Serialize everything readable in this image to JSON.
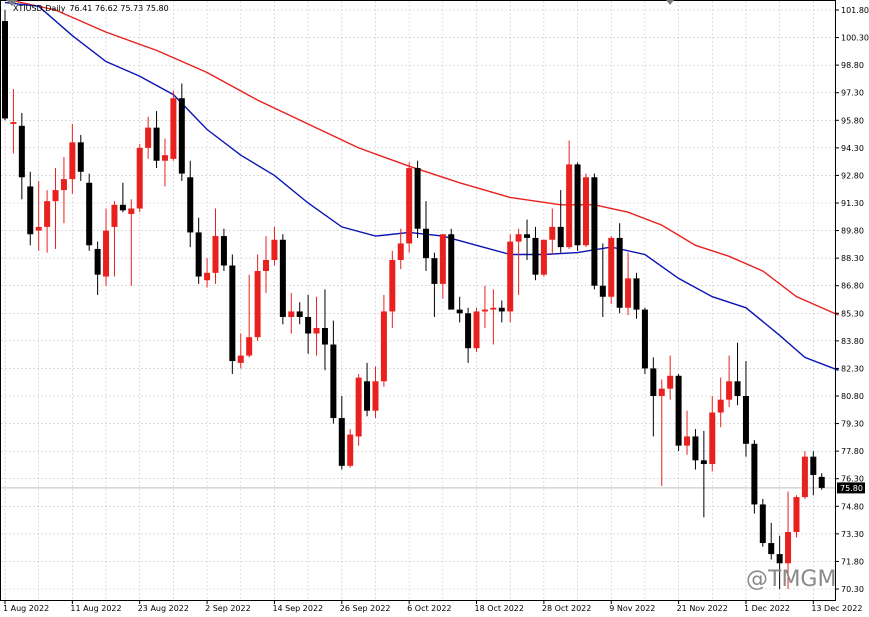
{
  "header": {
    "symbol": "XTIUSD,Daily",
    "ohlc": "76.41 76.62 75.73 75.80"
  },
  "watermark": {
    "text": "@TMGM"
  },
  "colors": {
    "bull": "#e8201e",
    "bear": "#000000",
    "ma_slow": "#e8201e",
    "ma_fast": "#0a14b4",
    "grid": "#c8c8c8",
    "price_label_bg": "#000000",
    "price_label_fg": "#ffffff"
  },
  "chart_data": {
    "type": "candlestick",
    "symbol": "XTIUSD",
    "timeframe": "Daily",
    "ylim": [
      70.0,
      102.0
    ],
    "y_ticks": [
      "101.80",
      "100.30",
      "98.80",
      "97.30",
      "95.80",
      "94.30",
      "92.80",
      "91.30",
      "89.80",
      "88.30",
      "86.80",
      "85.30",
      "83.80",
      "82.30",
      "80.80",
      "79.30",
      "77.80",
      "76.30",
      "74.80",
      "73.30",
      "71.80",
      "70.30"
    ],
    "x_labels": [
      {
        "label": "1 Aug 2022",
        "index": 0
      },
      {
        "label": "11 Aug 2022",
        "index": 8
      },
      {
        "label": "23 Aug 2022",
        "index": 16
      },
      {
        "label": "2 Sep 2022",
        "index": 24
      },
      {
        "label": "14 Sep 2022",
        "index": 32
      },
      {
        "label": "26 Sep 2022",
        "index": 40
      },
      {
        "label": "6 Oct 2022",
        "index": 48
      },
      {
        "label": "18 Oct 2022",
        "index": 56
      },
      {
        "label": "28 Oct 2022",
        "index": 64
      },
      {
        "label": "9 Nov 2022",
        "index": 72
      },
      {
        "label": "21 Nov 2022",
        "index": 80
      },
      {
        "label": "1 Dec 2022",
        "index": 88
      },
      {
        "label": "13 Dec 2022",
        "index": 96
      }
    ],
    "current_price": "75.80",
    "candles": [
      {
        "o": 101.2,
        "h": 101.8,
        "l": 95.8,
        "c": 95.9
      },
      {
        "o": 95.6,
        "h": 97.5,
        "l": 94.0,
        "c": 95.7
      },
      {
        "o": 95.5,
        "h": 96.2,
        "l": 91.5,
        "c": 92.7
      },
      {
        "o": 92.2,
        "h": 93.0,
        "l": 89.0,
        "c": 89.6
      },
      {
        "o": 89.8,
        "h": 92.5,
        "l": 88.7,
        "c": 90.0
      },
      {
        "o": 90.0,
        "h": 92.0,
        "l": 88.6,
        "c": 91.4
      },
      {
        "o": 91.4,
        "h": 93.2,
        "l": 88.8,
        "c": 92.0
      },
      {
        "o": 92.0,
        "h": 93.8,
        "l": 90.2,
        "c": 92.6
      },
      {
        "o": 92.6,
        "h": 95.6,
        "l": 91.8,
        "c": 94.6
      },
      {
        "o": 94.6,
        "h": 95.0,
        "l": 92.5,
        "c": 93.0
      },
      {
        "o": 92.4,
        "h": 92.9,
        "l": 88.7,
        "c": 89.0
      },
      {
        "o": 88.8,
        "h": 89.2,
        "l": 86.3,
        "c": 87.4
      },
      {
        "o": 87.3,
        "h": 91.0,
        "l": 86.8,
        "c": 89.8
      },
      {
        "o": 90.0,
        "h": 91.4,
        "l": 87.3,
        "c": 91.2
      },
      {
        "o": 91.2,
        "h": 92.4,
        "l": 90.8,
        "c": 90.9
      },
      {
        "o": 90.7,
        "h": 91.5,
        "l": 86.8,
        "c": 91.0
      },
      {
        "o": 91.0,
        "h": 94.5,
        "l": 90.8,
        "c": 94.3
      },
      {
        "o": 94.3,
        "h": 96.0,
        "l": 93.7,
        "c": 95.4
      },
      {
        "o": 95.4,
        "h": 96.3,
        "l": 93.2,
        "c": 93.6
      },
      {
        "o": 93.6,
        "h": 94.8,
        "l": 92.2,
        "c": 93.9
      },
      {
        "o": 93.7,
        "h": 97.4,
        "l": 93.6,
        "c": 97.0
      },
      {
        "o": 97.0,
        "h": 97.8,
        "l": 92.5,
        "c": 92.9
      },
      {
        "o": 92.7,
        "h": 93.6,
        "l": 88.9,
        "c": 89.7
      },
      {
        "o": 89.7,
        "h": 90.5,
        "l": 86.9,
        "c": 87.3
      },
      {
        "o": 87.1,
        "h": 88.3,
        "l": 86.7,
        "c": 87.5
      },
      {
        "o": 87.5,
        "h": 91.0,
        "l": 86.9,
        "c": 89.5
      },
      {
        "o": 89.5,
        "h": 89.9,
        "l": 87.6,
        "c": 87.9
      },
      {
        "o": 87.9,
        "h": 88.5,
        "l": 82.0,
        "c": 82.7
      },
      {
        "o": 82.6,
        "h": 84.2,
        "l": 82.3,
        "c": 83.0
      },
      {
        "o": 83.0,
        "h": 87.4,
        "l": 82.9,
        "c": 84.0
      },
      {
        "o": 84.0,
        "h": 88.5,
        "l": 83.8,
        "c": 87.6
      },
      {
        "o": 87.6,
        "h": 89.5,
        "l": 86.4,
        "c": 88.2
      },
      {
        "o": 88.2,
        "h": 90.0,
        "l": 87.9,
        "c": 89.3
      },
      {
        "o": 89.3,
        "h": 89.6,
        "l": 84.7,
        "c": 85.1
      },
      {
        "o": 85.1,
        "h": 86.4,
        "l": 84.2,
        "c": 85.4
      },
      {
        "o": 85.4,
        "h": 85.9,
        "l": 84.7,
        "c": 85.1
      },
      {
        "o": 85.1,
        "h": 86.3,
        "l": 83.1,
        "c": 84.2
      },
      {
        "o": 84.2,
        "h": 86.2,
        "l": 83.0,
        "c": 84.5
      },
      {
        "o": 84.5,
        "h": 86.6,
        "l": 82.2,
        "c": 83.6
      },
      {
        "o": 83.6,
        "h": 84.9,
        "l": 79.3,
        "c": 79.6
      },
      {
        "o": 79.6,
        "h": 80.8,
        "l": 76.8,
        "c": 77.0
      },
      {
        "o": 77.0,
        "h": 79.0,
        "l": 76.9,
        "c": 78.7
      },
      {
        "o": 78.6,
        "h": 82.0,
        "l": 78.1,
        "c": 81.8
      },
      {
        "o": 81.6,
        "h": 82.6,
        "l": 79.7,
        "c": 80.0
      },
      {
        "o": 80.0,
        "h": 82.4,
        "l": 79.6,
        "c": 81.6
      },
      {
        "o": 81.6,
        "h": 86.3,
        "l": 81.3,
        "c": 85.4
      },
      {
        "o": 85.4,
        "h": 88.7,
        "l": 84.5,
        "c": 88.2
      },
      {
        "o": 88.2,
        "h": 89.9,
        "l": 87.7,
        "c": 89.1
      },
      {
        "o": 89.1,
        "h": 93.5,
        "l": 88.6,
        "c": 93.2
      },
      {
        "o": 93.2,
        "h": 93.6,
        "l": 89.4,
        "c": 89.9
      },
      {
        "o": 89.9,
        "h": 91.4,
        "l": 87.6,
        "c": 88.3
      },
      {
        "o": 88.3,
        "h": 88.6,
        "l": 85.1,
        "c": 86.9
      },
      {
        "o": 86.9,
        "h": 89.6,
        "l": 86.1,
        "c": 89.6
      },
      {
        "o": 89.6,
        "h": 89.9,
        "l": 85.8,
        "c": 85.5
      },
      {
        "o": 85.5,
        "h": 86.2,
        "l": 84.8,
        "c": 85.3
      },
      {
        "o": 85.3,
        "h": 85.6,
        "l": 82.6,
        "c": 83.4
      },
      {
        "o": 83.4,
        "h": 85.6,
        "l": 83.2,
        "c": 85.4
      },
      {
        "o": 85.4,
        "h": 86.8,
        "l": 84.5,
        "c": 85.5
      },
      {
        "o": 85.5,
        "h": 86.6,
        "l": 83.6,
        "c": 85.6
      },
      {
        "o": 85.6,
        "h": 86.0,
        "l": 84.8,
        "c": 85.4
      },
      {
        "o": 85.4,
        "h": 89.6,
        "l": 84.8,
        "c": 89.2
      },
      {
        "o": 89.2,
        "h": 89.9,
        "l": 86.3,
        "c": 89.6
      },
      {
        "o": 89.6,
        "h": 90.4,
        "l": 88.2,
        "c": 89.4
      },
      {
        "o": 89.4,
        "h": 90.0,
        "l": 87.1,
        "c": 87.4
      },
      {
        "o": 87.4,
        "h": 89.3,
        "l": 87.3,
        "c": 89.3
      },
      {
        "o": 89.3,
        "h": 91.0,
        "l": 88.5,
        "c": 90.0
      },
      {
        "o": 90.0,
        "h": 92.0,
        "l": 88.6,
        "c": 88.9
      },
      {
        "o": 88.9,
        "h": 94.7,
        "l": 88.8,
        "c": 93.4
      },
      {
        "o": 93.4,
        "h": 93.5,
        "l": 88.7,
        "c": 89.0
      },
      {
        "o": 89.0,
        "h": 92.9,
        "l": 88.9,
        "c": 92.7
      },
      {
        "o": 92.7,
        "h": 92.9,
        "l": 86.6,
        "c": 86.8
      },
      {
        "o": 86.8,
        "h": 89.1,
        "l": 85.1,
        "c": 86.2
      },
      {
        "o": 86.2,
        "h": 89.5,
        "l": 85.8,
        "c": 89.4
      },
      {
        "o": 89.4,
        "h": 90.2,
        "l": 85.3,
        "c": 85.6
      },
      {
        "o": 85.6,
        "h": 88.6,
        "l": 85.2,
        "c": 87.2
      },
      {
        "o": 87.2,
        "h": 87.5,
        "l": 85.0,
        "c": 85.5
      },
      {
        "o": 85.5,
        "h": 85.6,
        "l": 82.0,
        "c": 82.3
      },
      {
        "o": 82.3,
        "h": 82.9,
        "l": 78.6,
        "c": 80.8
      },
      {
        "o": 80.8,
        "h": 81.7,
        "l": 75.9,
        "c": 81.2
      },
      {
        "o": 81.2,
        "h": 83.0,
        "l": 80.6,
        "c": 81.9
      },
      {
        "o": 81.9,
        "h": 82.0,
        "l": 77.8,
        "c": 78.1
      },
      {
        "o": 78.1,
        "h": 80.0,
        "l": 77.6,
        "c": 78.6
      },
      {
        "o": 78.6,
        "h": 79.0,
        "l": 76.8,
        "c": 77.3
      },
      {
        "o": 77.3,
        "h": 78.9,
        "l": 74.2,
        "c": 77.1
      },
      {
        "o": 77.1,
        "h": 80.8,
        "l": 76.7,
        "c": 79.9
      },
      {
        "o": 79.9,
        "h": 81.8,
        "l": 79.1,
        "c": 80.6
      },
      {
        "o": 80.6,
        "h": 83.0,
        "l": 80.2,
        "c": 81.6
      },
      {
        "o": 81.6,
        "h": 83.7,
        "l": 80.3,
        "c": 80.8
      },
      {
        "o": 80.8,
        "h": 82.7,
        "l": 77.5,
        "c": 78.2
      },
      {
        "o": 78.2,
        "h": 78.4,
        "l": 74.4,
        "c": 74.9
      },
      {
        "o": 74.9,
        "h": 75.2,
        "l": 72.6,
        "c": 72.8
      },
      {
        "o": 72.8,
        "h": 73.9,
        "l": 71.9,
        "c": 72.2
      },
      {
        "o": 72.2,
        "h": 73.2,
        "l": 70.3,
        "c": 71.7
      },
      {
        "o": 71.7,
        "h": 75.6,
        "l": 70.3,
        "c": 73.4
      },
      {
        "o": 73.4,
        "h": 75.4,
        "l": 73.1,
        "c": 75.3
      },
      {
        "o": 75.3,
        "h": 77.8,
        "l": 75.2,
        "c": 77.5
      },
      {
        "o": 77.5,
        "h": 77.8,
        "l": 75.4,
        "c": 76.5
      },
      {
        "o": 76.4,
        "h": 76.6,
        "l": 75.7,
        "c": 75.8
      }
    ],
    "ma_slow": [
      {
        "i": 0,
        "v": 102.4
      },
      {
        "i": 6,
        "v": 101.8
      },
      {
        "i": 12,
        "v": 100.6
      },
      {
        "i": 18,
        "v": 99.6
      },
      {
        "i": 24,
        "v": 98.4
      },
      {
        "i": 30,
        "v": 96.9
      },
      {
        "i": 36,
        "v": 95.6
      },
      {
        "i": 42,
        "v": 94.3
      },
      {
        "i": 48,
        "v": 93.3
      },
      {
        "i": 54,
        "v": 92.4
      },
      {
        "i": 60,
        "v": 91.6
      },
      {
        "i": 66,
        "v": 91.2
      },
      {
        "i": 70,
        "v": 91.2
      },
      {
        "i": 74,
        "v": 90.8
      },
      {
        "i": 78,
        "v": 90.1
      },
      {
        "i": 82,
        "v": 89.0
      },
      {
        "i": 86,
        "v": 88.4
      },
      {
        "i": 90,
        "v": 87.6
      },
      {
        "i": 94,
        "v": 86.2
      },
      {
        "i": 99,
        "v": 85.2
      }
    ],
    "ma_fast": [
      {
        "i": 0,
        "v": 102.2
      },
      {
        "i": 4,
        "v": 102.0
      },
      {
        "i": 8,
        "v": 100.4
      },
      {
        "i": 12,
        "v": 99.0
      },
      {
        "i": 16,
        "v": 98.2
      },
      {
        "i": 20,
        "v": 97.2
      },
      {
        "i": 24,
        "v": 95.3
      },
      {
        "i": 28,
        "v": 93.9
      },
      {
        "i": 32,
        "v": 92.8
      },
      {
        "i": 36,
        "v": 91.3
      },
      {
        "i": 40,
        "v": 90.0
      },
      {
        "i": 44,
        "v": 89.5
      },
      {
        "i": 48,
        "v": 89.7
      },
      {
        "i": 52,
        "v": 89.5
      },
      {
        "i": 56,
        "v": 89.0
      },
      {
        "i": 60,
        "v": 88.5
      },
      {
        "i": 64,
        "v": 88.5
      },
      {
        "i": 68,
        "v": 88.6
      },
      {
        "i": 72,
        "v": 88.9
      },
      {
        "i": 76,
        "v": 88.5
      },
      {
        "i": 80,
        "v": 87.2
      },
      {
        "i": 84,
        "v": 86.2
      },
      {
        "i": 88,
        "v": 85.6
      },
      {
        "i": 92,
        "v": 84.1
      },
      {
        "i": 95,
        "v": 82.9
      },
      {
        "i": 99,
        "v": 82.2
      }
    ]
  }
}
